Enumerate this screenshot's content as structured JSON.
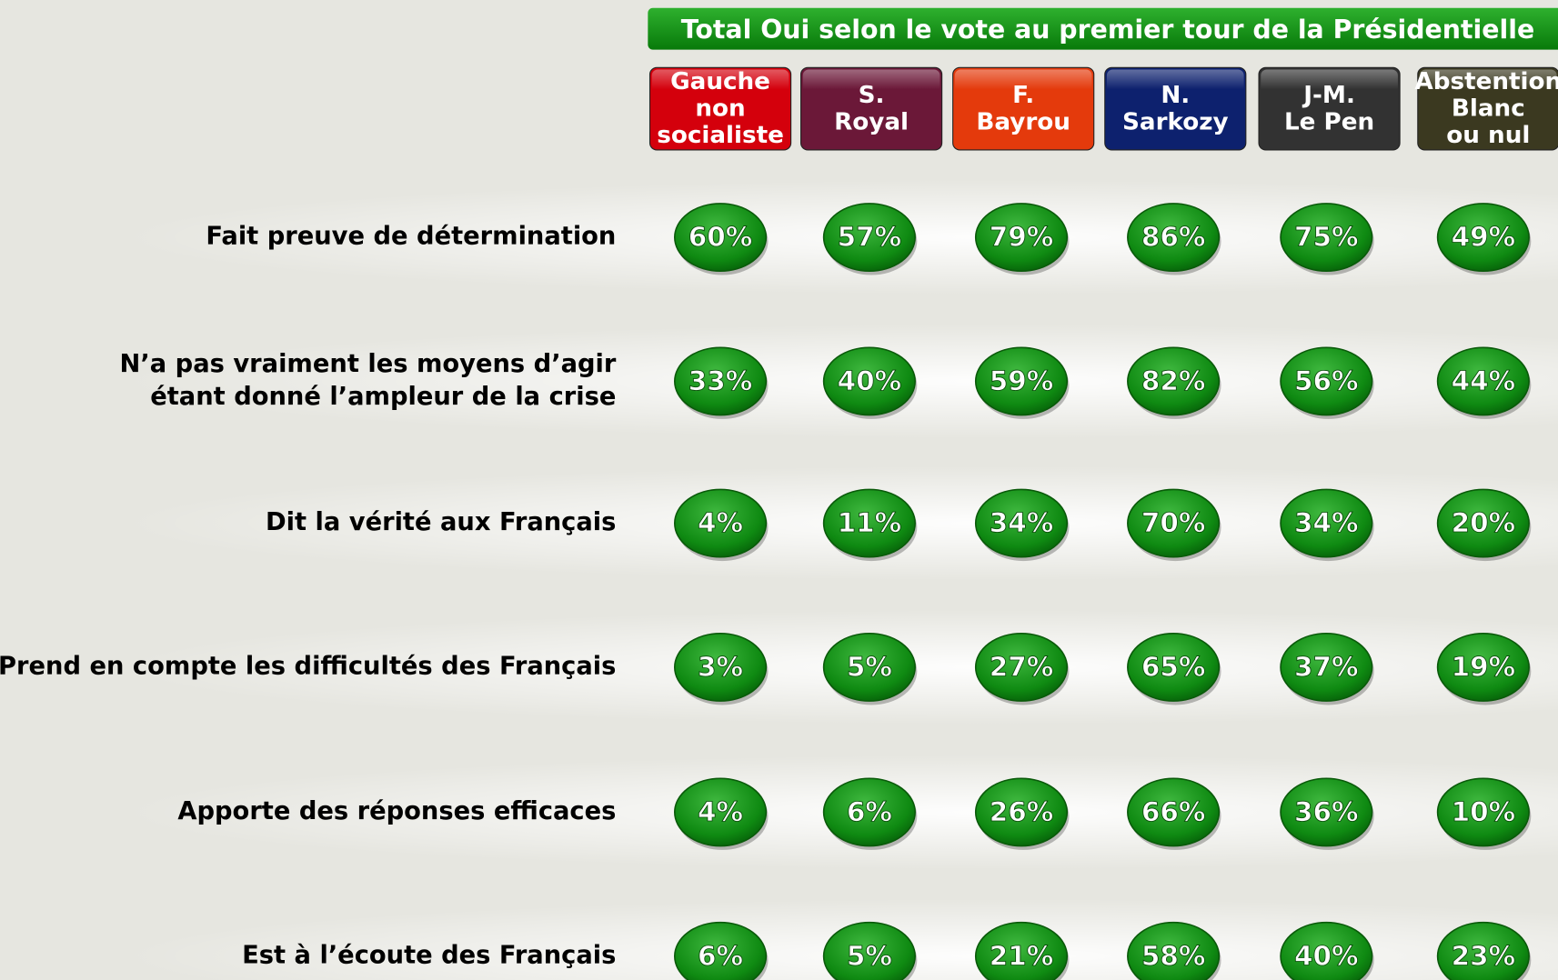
{
  "header": {
    "title": "Total Oui selon le vote au premier tour de la Présidentielle"
  },
  "table": {
    "columns": [
      {
        "lines": [
          "Gauche",
          "non",
          "socialiste"
        ],
        "color": "#d4000c"
      },
      {
        "lines": [
          "S.",
          "Royal"
        ],
        "color": "#6b1838"
      },
      {
        "lines": [
          "F.",
          "Bayrou"
        ],
        "color": "#e43a0c"
      },
      {
        "lines": [
          "N.",
          "Sarkozy"
        ],
        "color": "#0d216e"
      },
      {
        "lines": [
          "J-M.",
          "Le Pen"
        ],
        "color": "#323232"
      },
      {
        "lines": [
          "Abstention",
          "Blanc",
          "ou nul"
        ],
        "color": "#3b3920"
      }
    ],
    "rows": [
      {
        "lines": [
          "Fait preuve de détermination"
        ],
        "values": [
          "60%",
          "57%",
          "79%",
          "86%",
          "75%",
          "49%"
        ]
      },
      {
        "lines": [
          "N’a pas vraiment les moyens d’agir",
          "étant donné l’ampleur de la crise"
        ],
        "values": [
          "33%",
          "40%",
          "59%",
          "82%",
          "56%",
          "44%"
        ]
      },
      {
        "lines": [
          "Dit la vérité aux Français"
        ],
        "values": [
          "4%",
          "11%",
          "34%",
          "70%",
          "34%",
          "20%"
        ]
      },
      {
        "lines": [
          "Prend en compte les difficultés des Français"
        ],
        "values": [
          "3%",
          "5%",
          "27%",
          "65%",
          "37%",
          "19%"
        ]
      },
      {
        "lines": [
          "Apporte des réponses efficaces"
        ],
        "values": [
          "4%",
          "6%",
          "26%",
          "66%",
          "36%",
          "10%"
        ]
      },
      {
        "lines": [
          "Est à l’écoute des Français"
        ],
        "values": [
          "6%",
          "5%",
          "21%",
          "58%",
          "40%",
          "23%"
        ]
      }
    ]
  }
}
